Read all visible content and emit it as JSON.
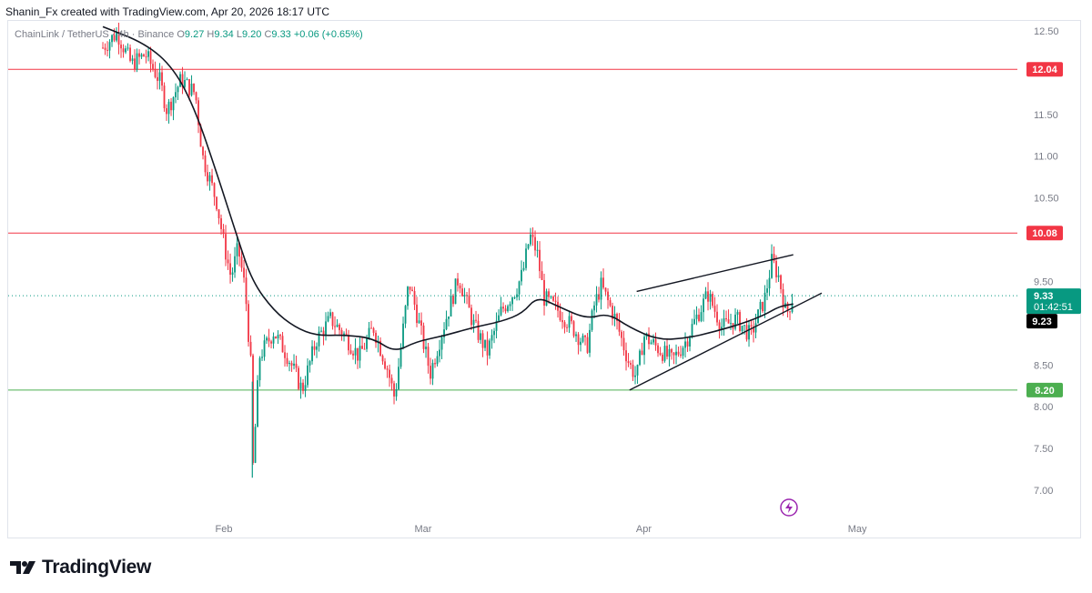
{
  "header": {
    "attribution": "Shanin_Fx created with TradingView.com, Apr 20, 2026 18:17 UTC"
  },
  "legend": {
    "symbol": "ChainLink / TetherUS · 4h · Binance",
    "open_key": "O",
    "open": "9.27",
    "high_key": "H",
    "high": "9.34",
    "low_key": "L",
    "low": "9.20",
    "close_key": "C",
    "close": "9.33",
    "change": "+0.06 (+0.65%)"
  },
  "brand": {
    "name": "TradingView"
  },
  "colors": {
    "up": "#089981",
    "down": "#f23645",
    "resistance": "#f23645",
    "support": "#4caf50",
    "ma": "#131722",
    "last_price": "#089981",
    "lightning": "#9c27b0"
  },
  "chart_data": {
    "type": "candlestick",
    "timeframe": "4h",
    "y_axis": {
      "range": [
        6.8,
        12.6
      ],
      "ticks": [
        "12.50",
        "11.50",
        "11.00",
        "10.50",
        "9.50",
        "8.50",
        "8.00",
        "7.50",
        "7.00"
      ]
    },
    "x_axis": {
      "ticks": [
        "Feb",
        "Mar",
        "Apr",
        "May"
      ]
    },
    "horizontal_levels": [
      {
        "label": "12.04",
        "value": 12.04,
        "color": "#f23645"
      },
      {
        "label": "10.08",
        "value": 10.08,
        "color": "#f23645"
      },
      {
        "label": "8.20",
        "value": 8.2,
        "color": "#4caf50"
      }
    ],
    "price_tags": [
      {
        "label": "9.33",
        "sublabel": "01:42:51",
        "value": 9.33,
        "color": "#089981"
      },
      {
        "label": "9.23",
        "value": 9.23,
        "color": "#000000"
      }
    ],
    "ascending_channel": {
      "upper": [
        [
          "2026-03-31",
          9.38
        ],
        [
          "2026-04-22",
          9.82
        ]
      ],
      "lower": [
        [
          "2026-03-30",
          8.2
        ],
        [
          "2026-04-26",
          9.36
        ]
      ]
    },
    "price_path": [
      [
        "2026-01-15",
        12.3
      ],
      [
        "2026-01-17",
        12.48
      ],
      [
        "2026-01-19",
        12.1
      ],
      [
        "2026-01-21",
        12.22
      ],
      [
        "2026-01-23",
        11.9
      ],
      [
        "2026-01-24",
        11.55
      ],
      [
        "2026-01-26",
        11.92
      ],
      [
        "2026-01-28",
        11.75
      ],
      [
        "2026-01-29",
        11.0
      ],
      [
        "2026-01-31",
        10.45
      ],
      [
        "2026-02-01",
        9.95
      ],
      [
        "2026-02-02",
        9.55
      ],
      [
        "2026-02-03",
        9.9
      ],
      [
        "2026-02-04",
        9.4
      ],
      [
        "2026-02-05",
        8.25
      ],
      [
        "2026-02-05",
        7.15
      ],
      [
        "2026-02-06",
        8.6
      ],
      [
        "2026-02-08",
        8.9
      ],
      [
        "2026-02-10",
        8.6
      ],
      [
        "2026-02-12",
        8.2
      ],
      [
        "2026-02-14",
        8.8
      ],
      [
        "2026-02-16",
        9.05
      ],
      [
        "2026-02-18",
        8.85
      ],
      [
        "2026-02-20",
        8.6
      ],
      [
        "2026-02-22",
        8.95
      ],
      [
        "2026-02-24",
        8.45
      ],
      [
        "2026-02-25",
        8.1
      ],
      [
        "2026-02-27",
        9.5
      ],
      [
        "2026-02-28",
        9.15
      ],
      [
        "2026-03-02",
        8.4
      ],
      [
        "2026-03-04",
        9.0
      ],
      [
        "2026-03-06",
        9.55
      ],
      [
        "2026-03-08",
        9.0
      ],
      [
        "2026-03-10",
        8.65
      ],
      [
        "2026-03-12",
        9.15
      ],
      [
        "2026-03-14",
        9.4
      ],
      [
        "2026-03-15",
        9.6
      ],
      [
        "2026-03-16",
        10.05
      ],
      [
        "2026-03-17",
        9.85
      ],
      [
        "2026-03-18",
        9.3
      ],
      [
        "2026-03-20",
        9.15
      ],
      [
        "2026-03-22",
        8.95
      ],
      [
        "2026-03-24",
        8.7
      ],
      [
        "2026-03-25",
        9.2
      ],
      [
        "2026-03-26",
        9.45
      ],
      [
        "2026-03-28",
        9.05
      ],
      [
        "2026-03-30",
        8.5
      ],
      [
        "2026-03-31",
        8.35
      ],
      [
        "2026-04-01",
        8.85
      ],
      [
        "2026-04-03",
        8.7
      ],
      [
        "2026-04-05",
        8.55
      ],
      [
        "2026-04-07",
        8.8
      ],
      [
        "2026-04-08",
        9.0
      ],
      [
        "2026-04-10",
        9.35
      ],
      [
        "2026-04-12",
        8.95
      ],
      [
        "2026-04-14",
        9.05
      ],
      [
        "2026-04-16",
        8.85
      ],
      [
        "2026-04-18",
        9.3
      ],
      [
        "2026-04-19",
        9.75
      ],
      [
        "2026-04-20",
        9.55
      ],
      [
        "2026-04-21",
        9.1
      ],
      [
        "2026-04-22",
        9.33
      ]
    ],
    "moving_average": [
      [
        "2026-01-15",
        12.55
      ],
      [
        "2026-01-21",
        12.35
      ],
      [
        "2026-01-25",
        12.05
      ],
      [
        "2026-01-28",
        11.55
      ],
      [
        "2026-01-31",
        10.8
      ],
      [
        "2026-02-03",
        10.0
      ],
      [
        "2026-02-05",
        9.5
      ],
      [
        "2026-02-08",
        9.15
      ],
      [
        "2026-02-11",
        8.95
      ],
      [
        "2026-02-14",
        8.85
      ],
      [
        "2026-02-18",
        8.86
      ],
      [
        "2026-02-22",
        8.82
      ],
      [
        "2026-02-25",
        8.65
      ],
      [
        "2026-02-28",
        8.78
      ],
      [
        "2026-03-04",
        8.85
      ],
      [
        "2026-03-08",
        8.95
      ],
      [
        "2026-03-12",
        9.02
      ],
      [
        "2026-03-15",
        9.12
      ],
      [
        "2026-03-17",
        9.32
      ],
      [
        "2026-03-20",
        9.2
      ],
      [
        "2026-03-24",
        9.05
      ],
      [
        "2026-03-27",
        9.12
      ],
      [
        "2026-03-30",
        8.95
      ],
      [
        "2026-04-03",
        8.8
      ],
      [
        "2026-04-07",
        8.82
      ],
      [
        "2026-04-11",
        8.9
      ],
      [
        "2026-04-15",
        9.0
      ],
      [
        "2026-04-18",
        9.1
      ],
      [
        "2026-04-20",
        9.2
      ],
      [
        "2026-04-22",
        9.23
      ]
    ]
  }
}
